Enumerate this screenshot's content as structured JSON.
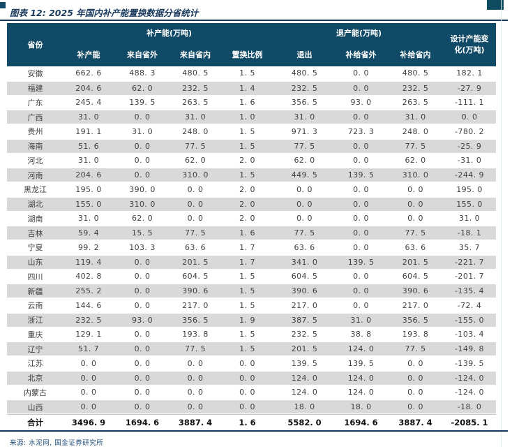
{
  "title": "图表 12: 2025 年国内补产能置换数据分省统计",
  "footer": {
    "source": "来源: 水泥网, 国金证券研究所"
  },
  "colors": {
    "header_bg": "#114A66",
    "band": "#D9D9D9",
    "accent": "#17375E"
  },
  "table": {
    "header": {
      "province": "省份",
      "add_group": "补产能(万吨)",
      "exit_group": "退产能(万吨)",
      "design_change": "设计产能变化(万吨)",
      "add_cols": [
        "补产能",
        "来自省外",
        "来自省内",
        "置换比例"
      ],
      "exit_cols": [
        "退出",
        "补给省外",
        "补给省内"
      ]
    },
    "rows": [
      {
        "province": "安徽",
        "values": [
          "662.6",
          "488.3",
          "480.5",
          "1.5",
          "480.5",
          "0.0",
          "480.5",
          "182.1"
        ]
      },
      {
        "province": "福建",
        "values": [
          "204.6",
          "62.0",
          "232.5",
          "1.4",
          "232.5",
          "0.0",
          "232.5",
          "-27.9"
        ]
      },
      {
        "province": "广东",
        "values": [
          "245.4",
          "139.5",
          "263.5",
          "1.6",
          "356.5",
          "93.0",
          "263.5",
          "-111.1"
        ]
      },
      {
        "province": "广西",
        "values": [
          "31.0",
          "0.0",
          "31.0",
          "1.0",
          "31.0",
          "0.0",
          "31.0",
          "0.0"
        ]
      },
      {
        "province": "贵州",
        "values": [
          "191.1",
          "31.0",
          "248.0",
          "1.5",
          "971.3",
          "723.3",
          "248.0",
          "-780.2"
        ]
      },
      {
        "province": "海南",
        "values": [
          "51.6",
          "0.0",
          "77.5",
          "1.5",
          "77.5",
          "0.0",
          "77.5",
          "-25.9"
        ]
      },
      {
        "province": "河北",
        "values": [
          "31.0",
          "0.0",
          "62.0",
          "2.0",
          "62.0",
          "0.0",
          "62.0",
          "-31.0"
        ]
      },
      {
        "province": "河南",
        "values": [
          "204.6",
          "0.0",
          "310.0",
          "1.5",
          "449.5",
          "139.5",
          "310.0",
          "-244.9"
        ]
      },
      {
        "province": "黑龙江",
        "values": [
          "195.0",
          "390.0",
          "0.0",
          "2.0",
          "0.0",
          "0.0",
          "0.0",
          "195.0"
        ]
      },
      {
        "province": "湖北",
        "values": [
          "155.0",
          "310.0",
          "0.0",
          "2.0",
          "0.0",
          "0.0",
          "0.0",
          "155.0"
        ]
      },
      {
        "province": "湖南",
        "values": [
          "31.0",
          "62.0",
          "0.0",
          "2.0",
          "0.0",
          "0.0",
          "0.0",
          "31.0"
        ]
      },
      {
        "province": "吉林",
        "values": [
          "59.4",
          "15.5",
          "77.5",
          "1.6",
          "77.5",
          "0.0",
          "77.5",
          "-18.1"
        ]
      },
      {
        "province": "宁夏",
        "values": [
          "99.2",
          "103.3",
          "63.6",
          "1.7",
          "63.6",
          "0.0",
          "63.6",
          "35.7"
        ]
      },
      {
        "province": "山东",
        "values": [
          "119.4",
          "0.0",
          "201.5",
          "1.7",
          "341.0",
          "139.5",
          "201.5",
          "-221.7"
        ]
      },
      {
        "province": "四川",
        "values": [
          "402.8",
          "0.0",
          "604.5",
          "1.5",
          "604.5",
          "0.0",
          "604.5",
          "-201.7"
        ]
      },
      {
        "province": "新疆",
        "values": [
          "255.2",
          "0.0",
          "390.6",
          "1.5",
          "390.6",
          "0.0",
          "390.6",
          "-135.4"
        ]
      },
      {
        "province": "云南",
        "values": [
          "144.6",
          "0.0",
          "217.0",
          "1.5",
          "217.0",
          "0.0",
          "217.0",
          "-72.4"
        ]
      },
      {
        "province": "浙江",
        "values": [
          "232.5",
          "93.0",
          "356.5",
          "1.9",
          "387.5",
          "31.0",
          "356.5",
          "-155.0"
        ]
      },
      {
        "province": "重庆",
        "values": [
          "129.1",
          "0.0",
          "193.8",
          "1.5",
          "232.5",
          "38.8",
          "193.8",
          "-103.4"
        ]
      },
      {
        "province": "辽宁",
        "values": [
          "51.7",
          "0.0",
          "77.5",
          "1.5",
          "201.5",
          "124.0",
          "77.5",
          "-149.8"
        ]
      },
      {
        "province": "江苏",
        "values": [
          "0.0",
          "0.0",
          "0.0",
          "0.0",
          "139.5",
          "139.5",
          "0.0",
          "-139.5"
        ]
      },
      {
        "province": "北京",
        "values": [
          "0.0",
          "0.0",
          "0.0",
          "0.0",
          "124.0",
          "124.0",
          "0.0",
          "-124.0"
        ]
      },
      {
        "province": "内蒙古",
        "values": [
          "0.0",
          "0.0",
          "0.0",
          "0.0",
          "124.0",
          "124.0",
          "0.0",
          "-124.0"
        ]
      },
      {
        "province": "山西",
        "values": [
          "0.0",
          "0.0",
          "0.0",
          "0.0",
          "18.0",
          "18.0",
          "0.0",
          "-18.0"
        ]
      }
    ],
    "total": {
      "label": "合计",
      "values": [
        "3496.9",
        "1694.6",
        "3887.4",
        "1.6",
        "5582.0",
        "1694.6",
        "3887.4",
        "-2085.1"
      ]
    }
  }
}
